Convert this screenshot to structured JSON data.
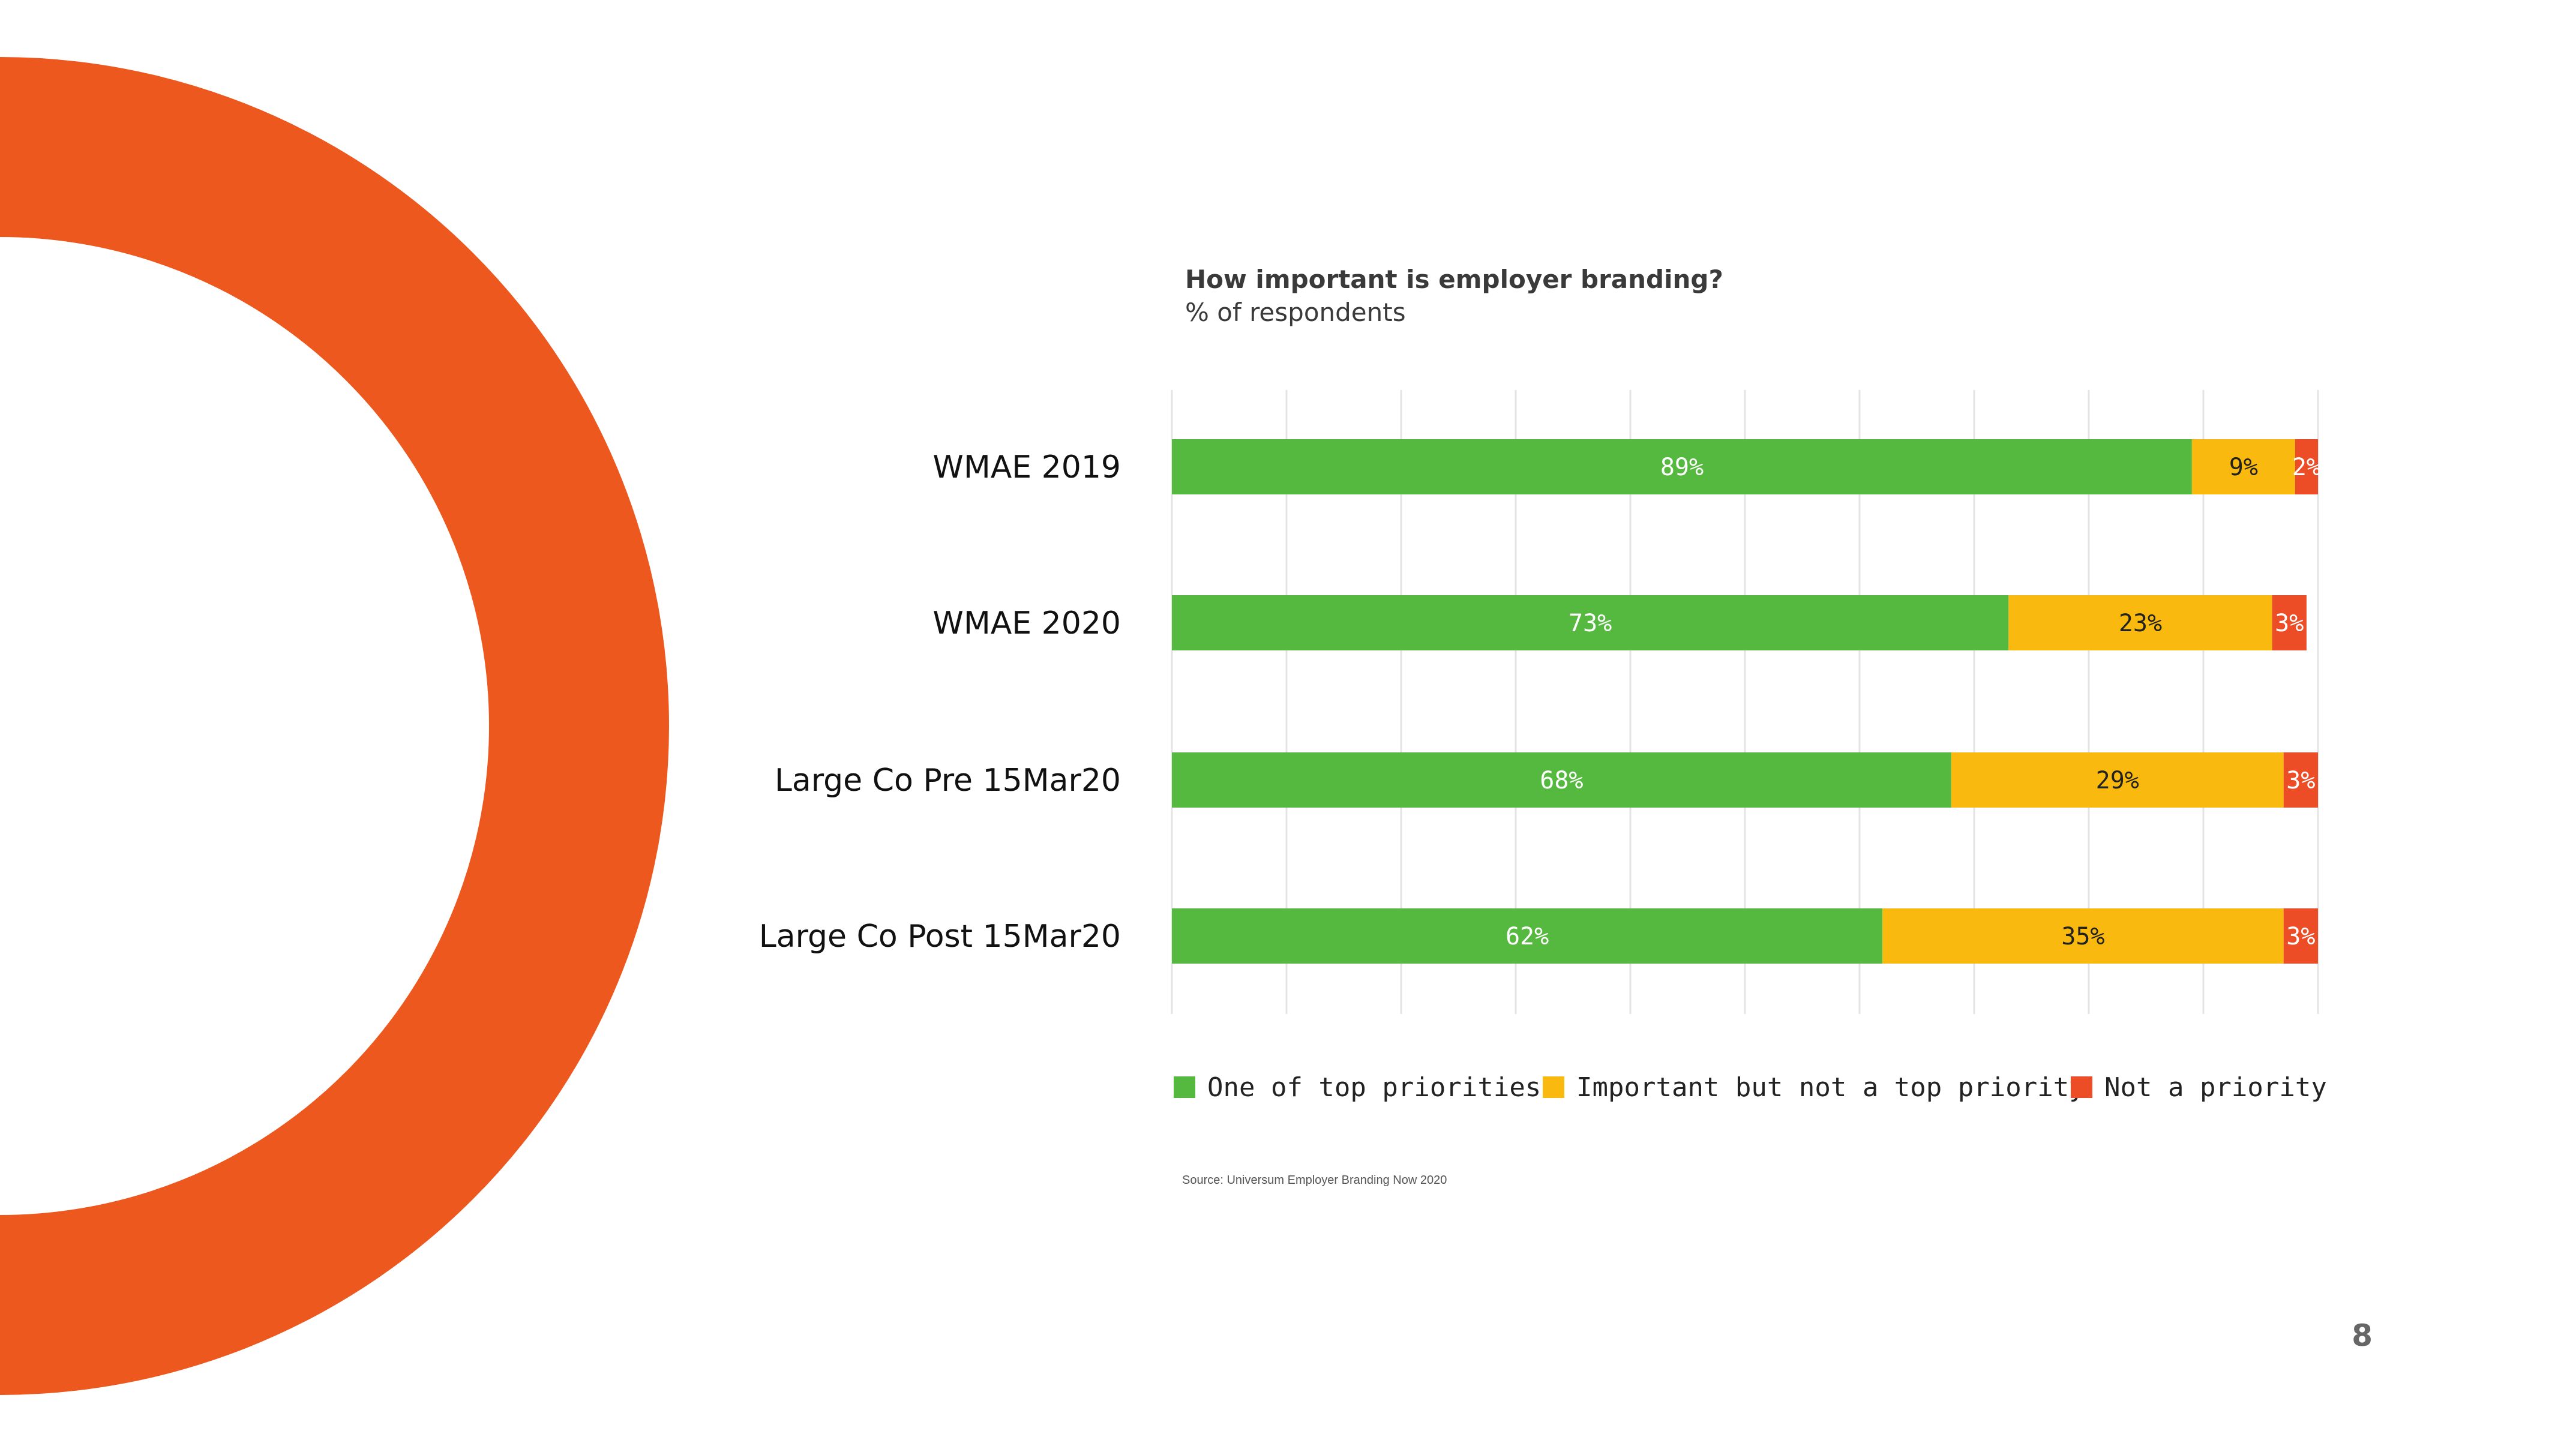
{
  "colors": {
    "top": "#55b93f",
    "important": "#f9b90e",
    "not": "#ec4d26",
    "ring": "#ed581f",
    "grid": "#e4e4e4"
  },
  "chart_data": {
    "type": "bar",
    "orientation": "horizontal-stacked",
    "title": "How important is employer branding?",
    "subtitle": "% of respondents",
    "categories": [
      "WMAE 2019",
      "WMAE 2020",
      "Large Co Pre 15Mar20",
      "Large Co Post 15Mar20"
    ],
    "series": [
      {
        "name": "One of top priorities",
        "values": [
          89,
          73,
          68,
          62
        ],
        "labels": [
          "89%",
          "73%",
          "68%",
          "62%"
        ]
      },
      {
        "name": "Important but not a top priority",
        "values": [
          9,
          23,
          29,
          35
        ],
        "labels": [
          "9%",
          "23%",
          "29%",
          "35%"
        ]
      },
      {
        "name": "Not a priority",
        "values": [
          2,
          3,
          3,
          3
        ],
        "labels": [
          "2%",
          "3%",
          "3%",
          "3%"
        ]
      }
    ],
    "xlim": [
      0,
      100
    ],
    "grid": true,
    "legend": "bottom"
  },
  "source": "Source: Universum Employer Branding Now 2020",
  "page_number": "8"
}
